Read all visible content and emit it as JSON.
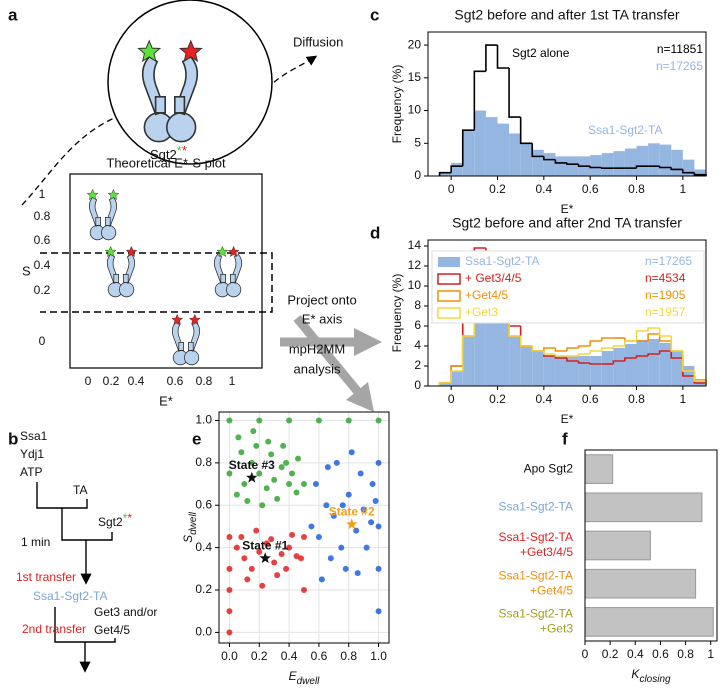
{
  "labels": [
    "a",
    "b",
    "c",
    "d",
    "e",
    "f"
  ],
  "diagram_a": {
    "diffusion": "Diffusion",
    "sgt2": "Sgt2",
    "asterisks": [
      "*",
      "*"
    ],
    "plot_title": "Theoretical E*-S plot",
    "ylabel": "S",
    "xlabel": "E*",
    "yticks": [
      "1",
      "0.8",
      "0.6",
      "0.4",
      "0.2",
      "0"
    ],
    "xticks": [
      "0",
      "0.2",
      "0.4",
      "0.6",
      "0.8",
      "1"
    ],
    "project": [
      "Project onto",
      "E* axis"
    ],
    "analysis": [
      "mpH2MM",
      "analysis"
    ]
  },
  "diagram_b": {
    "inputs": [
      "Ssa1",
      "Ydj1",
      "ATP"
    ],
    "ta": "TA",
    "sgt2": "Sgt2",
    "asterisks": [
      "*",
      "*"
    ],
    "time": "1 min",
    "first": "1st transfer",
    "complex": "Ssa1-Sgt2-TA",
    "gets": [
      "Get3 and/or",
      "Get4/5"
    ],
    "second": "2nd transfer"
  },
  "chart_data": [
    {
      "type": "histogram",
      "title": "Sgt2 before and after 1st TA transfer",
      "xlabel": "E*",
      "ylabel": "Frequency (%)",
      "bins": [
        -0.05,
        0,
        0.05,
        0.1,
        0.15,
        0.2,
        0.25,
        0.3,
        0.35,
        0.4,
        0.45,
        0.5,
        0.55,
        0.6,
        0.65,
        0.7,
        0.75,
        0.8,
        0.85,
        0.9,
        0.95,
        1,
        1.05,
        1.1
      ],
      "xlim": [
        -0.1,
        1.1
      ],
      "ylim": [
        0,
        22
      ],
      "xticks": [
        0,
        0.2,
        0.4,
        0.6,
        0.8,
        1
      ],
      "yticks": [
        0,
        5,
        10,
        15,
        20
      ],
      "series": [
        {
          "name": "Sgt2 alone",
          "n_label": "n=11851",
          "color": "#000000",
          "style": "step",
          "values": [
            0.5,
            1.5,
            7,
            16,
            20,
            16.5,
            9,
            5,
            3,
            2.5,
            2,
            1.8,
            1.5,
            1.3,
            1.2,
            1.2,
            1.2,
            1.5,
            1.5,
            1.3,
            1,
            0.5,
            0.2
          ]
        },
        {
          "name": "Ssa1-Sgt2-TA",
          "n_label": "n=17265",
          "color": "#96b6e2",
          "style": "filled",
          "values": [
            0.5,
            2,
            7,
            10,
            9,
            8,
            6.5,
            5,
            4,
            3.5,
            3,
            3,
            3,
            3.2,
            3.5,
            3.8,
            4.2,
            4.6,
            5,
            4.8,
            4,
            2.5,
            1
          ]
        }
      ]
    },
    {
      "type": "histogram",
      "title": "Sgt2 before and after 2nd TA transfer",
      "xlabel": "E*",
      "ylabel": "Frequency (%)",
      "bins": [
        -0.05,
        0,
        0.05,
        0.1,
        0.15,
        0.2,
        0.25,
        0.3,
        0.35,
        0.4,
        0.45,
        0.5,
        0.55,
        0.6,
        0.65,
        0.7,
        0.75,
        0.8,
        0.85,
        0.9,
        0.95,
        1,
        1.05,
        1.1
      ],
      "xlim": [
        -0.1,
        1.1
      ],
      "ylim": [
        0,
        14.6
      ],
      "xticks": [
        0,
        0.2,
        0.4,
        0.6,
        0.8,
        1
      ],
      "yticks": [
        0,
        2,
        4,
        6,
        8,
        10,
        12,
        14
      ],
      "series": [
        {
          "name": "Ssa1-Sgt2-TA",
          "n_label": "n=17265",
          "color": "#96b6e2",
          "style": "filled",
          "values": [
            0.3,
            1.5,
            5,
            10.5,
            9.5,
            7.5,
            5,
            4,
            3.5,
            3,
            3,
            3,
            3,
            3,
            3.5,
            3.8,
            4.2,
            4.6,
            4.7,
            4.3,
            3.5,
            2,
            0.7
          ]
        },
        {
          "name": "+ Get3/4/5",
          "n_label": "n=4534",
          "color": "#d42020",
          "style": "step",
          "values": [
            0.3,
            2,
            7,
            13.8,
            12,
            9,
            6,
            4,
            3.5,
            3,
            2.8,
            2.5,
            2.3,
            2.2,
            2.2,
            2.5,
            2.8,
            3,
            3.2,
            3.5,
            2.8,
            1,
            0.3
          ]
        },
        {
          "name": "+Get4/5",
          "n_label": "n=1905",
          "color": "#f0900a",
          "style": "step",
          "values": [
            0.3,
            2,
            5,
            11,
            9.5,
            7,
            5,
            4,
            3.5,
            3.8,
            3.5,
            3.8,
            4,
            4.5,
            4.8,
            4.8,
            4.5,
            4.5,
            5.2,
            4.5,
            3.5,
            1.5,
            0.5
          ]
        },
        {
          "name": "+Get3",
          "n_label": "n=1957",
          "color": "#f2d640",
          "style": "step",
          "values": [
            0.3,
            1.5,
            5,
            9.5,
            8.5,
            6.5,
            5,
            4,
            3.5,
            3.2,
            3,
            3,
            3.2,
            3.5,
            3.8,
            4,
            4.5,
            5.5,
            5.8,
            5,
            3.5,
            1.5,
            0.5
          ]
        }
      ]
    },
    {
      "type": "scatter",
      "xlabel": "E",
      "xlabel_sub": "dwell",
      "ylabel": "S",
      "ylabel_sub": "dwell",
      "xlim": [
        -0.07,
        1.07
      ],
      "ylim": [
        -0.05,
        1.04
      ],
      "xticks": [
        {
          "value": 0,
          "label": "0.0"
        },
        0.2,
        0.4,
        0.6,
        0.8,
        {
          "value": 1,
          "label": "1.0"
        }
      ],
      "yticks": [
        {
          "value": 0,
          "label": "0.0"
        },
        0.2,
        0.4,
        0.6,
        0.8,
        {
          "value": 1,
          "label": "1.0"
        }
      ],
      "grid": true,
      "series": [
        {
          "color": "#34a334",
          "x": [
            0.05,
            0.1,
            0.15,
            0.2,
            0.25,
            0.3,
            0.35,
            0.4,
            0.45,
            0.08,
            0.18,
            0.28,
            0.38,
            0.12,
            0.22,
            0.32,
            0.42,
            0.06,
            0.16,
            0.26,
            0.36,
            0.46,
            0,
            0.5,
            0,
            0.2,
            0.4,
            0.6,
            0.8,
            1
          ],
          "y": [
            0.65,
            0.7,
            0.8,
            0.75,
            0.68,
            0.72,
            0.78,
            0.7,
            0.66,
            0.85,
            0.88,
            0.84,
            0.8,
            0.62,
            0.6,
            0.63,
            0.75,
            0.92,
            0.95,
            0.9,
            0.88,
            0.82,
            0.75,
            0.7,
            1,
            1,
            1,
            1,
            1,
            1
          ]
        },
        {
          "color": "#e02222",
          "x": [
            0.05,
            0.1,
            0.15,
            0.2,
            0.25,
            0.3,
            0.35,
            0.4,
            0.45,
            0.08,
            0.18,
            0.28,
            0.38,
            0.48,
            0.12,
            0.22,
            0.32,
            0.42,
            0,
            0,
            0,
            0,
            0,
            0.5,
            0.5
          ],
          "y": [
            0.4,
            0.35,
            0.3,
            0.38,
            0.42,
            0.33,
            0.37,
            0.4,
            0.36,
            0.45,
            0.48,
            0.44,
            0.3,
            0.35,
            0.25,
            0.22,
            0.27,
            0.46,
            0.3,
            0.2,
            0.1,
            0,
            0.45,
            0.2,
            0.45
          ]
        },
        {
          "color": "#1f5fe0",
          "x": [
            0.55,
            0.6,
            0.65,
            0.7,
            0.75,
            0.8,
            0.85,
            0.9,
            0.95,
            0.58,
            0.68,
            0.78,
            0.88,
            0.98,
            0.62,
            0.72,
            0.82,
            0.92,
            0.66,
            0.76,
            0.86,
            0.96,
            1,
            1,
            1,
            1
          ],
          "y": [
            0.5,
            0.45,
            0.6,
            0.55,
            0.4,
            0.65,
            0.48,
            0.58,
            0.52,
            0.7,
            0.35,
            0.3,
            0.75,
            0.62,
            0.25,
            0.8,
            0.85,
            0.4,
            0.78,
            0.6,
            0.28,
            0.7,
            0.1,
            0.3,
            0.5,
            0.8
          ]
        }
      ],
      "annotations": [
        {
          "label": "State #3",
          "x": 0.15,
          "y": 0.73,
          "color": "#111111"
        },
        {
          "label": "State #1",
          "x": 0.24,
          "y": 0.35,
          "color": "#111111"
        },
        {
          "label": "State #2",
          "x": 0.82,
          "y": 0.51,
          "color": "#f0a020"
        }
      ]
    },
    {
      "type": "hbar",
      "xlabel": "K",
      "xlabel_sub": "closing",
      "categories": [
        [
          "Apo Sgt2"
        ],
        [
          "Ssa1-Sgt2-TA"
        ],
        [
          "Ssa1-Sgt2-TA",
          "+Get3/4/5"
        ],
        [
          "Ssa1-Sgt2-TA",
          "+Get4/5"
        ],
        [
          "Ssa1-Sgt2-TA",
          "+Get3"
        ]
      ],
      "category_colors": [
        "#111111",
        "#7ea6d8",
        "#e02020",
        "#f0900a",
        "#a0a020"
      ],
      "values": [
        0.22,
        0.93,
        0.52,
        0.88,
        1.02
      ],
      "color": "#c2c2c2",
      "xlim": [
        0,
        1.05
      ],
      "xticks": [
        0,
        0.2,
        0.4,
        0.6,
        0.8,
        1
      ]
    }
  ]
}
